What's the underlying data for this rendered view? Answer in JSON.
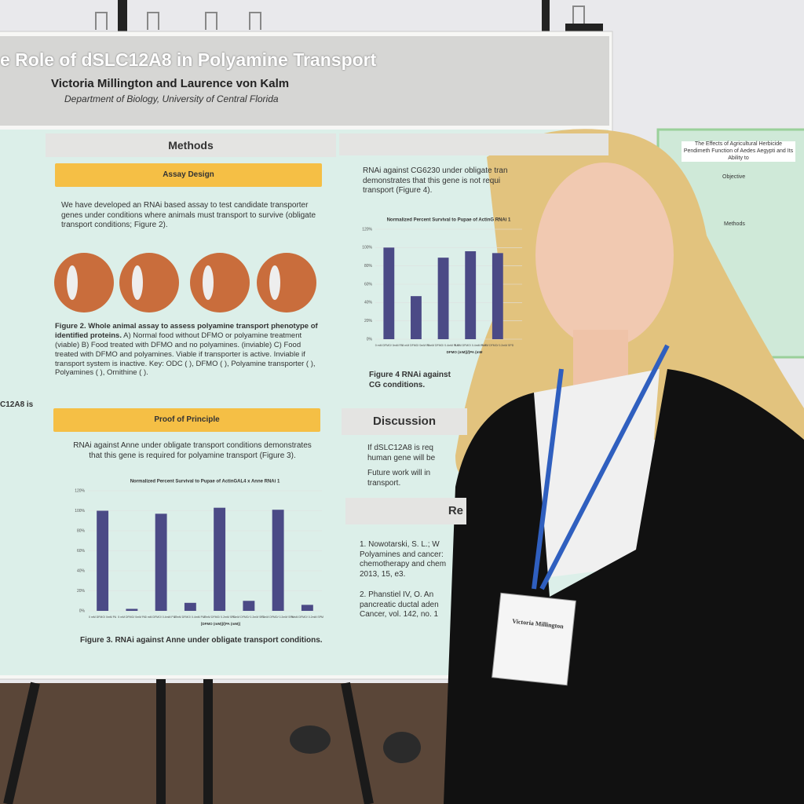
{
  "poster": {
    "title": "e Role of dSLC12A8 in Polyamine Transport",
    "authors": "Victoria Millington and Laurence von Kalm",
    "department": "Department of Biology, University of Central Florida",
    "left_fragment": "C12A8 is",
    "methods_heading": "Methods",
    "assay_heading": "Assay Design",
    "assay_text": "We have developed an RNAi based assay to test candidate transporter genes under conditions where animals must transport to survive (obligate transport conditions; Figure 2).",
    "figure2_caption_bold": "Figure 2. Whole animal assay to assess polyamine transport phenotype of identified proteins.",
    "figure2_caption_text": "A) Normal food without DFMO or polyamine treatment (viable) B) Food treated with DFMO and no polyamines. (inviable) C) Food treated with DFMO and polyamines. Viable if transporter is active. Inviable if transport system is inactive. Key: ODC ( ), DFMO ( ), Polyamine transporter ( ), Polyamines ( ), Ornithine ( ).",
    "principle_heading": "Proof of Principle",
    "principle_text": "RNAi against Anne under obligate transport conditions demonstrates that this gene is required for polyamine transport (Figure 3).",
    "figure3_caption": "Figure 3. RNAi against Anne under obligate transport conditions.",
    "right_text": "RNAi against CG6230 under obligate tran demonstrates that this gene is not requi transport (Figure 4).",
    "figure4_caption": "Figure 4 RNAi against CG conditions.",
    "discussion_heading": "Discussion",
    "discussion_bullets": [
      "If dSLC12A8 is req human gene will be",
      "Future work will in transport."
    ],
    "references_heading": "Re",
    "references": [
      "1. Nowotarski, S. L.; W Polyamines and cancer: chemotherapy and chem 2013, 15, e3.",
      "2. Phanstiel IV, O. An pancreatic ductal aden Cancer, vol. 142, no. 1"
    ]
  },
  "chart_data": [
    {
      "type": "bar",
      "title": "Normalized Percent Survival to Pupae of ActinGAL4 x Anne RNAi 1",
      "categories": [
        "0 mM DFMO/ 0mM PA",
        "5 mM DFMO/ 0mM PA",
        "0 mM DFMO/ 0.4mM PUT",
        "5 mM DFMO/ 0.4mM PUT",
        "0 mM DFMO/ 0.2mM SPD",
        "5 mM DFMO/ 0.2mM SPD",
        "0 mM DFMO/ 0.2mM SPM",
        "5 mM DFMO/ 0.2mM SPM"
      ],
      "values": [
        100,
        2,
        97,
        8,
        103,
        10,
        101,
        6
      ],
      "color": "#4b4a86",
      "x_label": "[DFMO (mM)]/[PA (mM)]",
      "ylim": [
        0,
        120
      ],
      "yticks": [
        {
          "value": 0,
          "label": "0%"
        },
        {
          "value": 20,
          "label": "20%"
        },
        {
          "value": 40,
          "label": "40%"
        },
        {
          "value": 60,
          "label": "60%"
        },
        {
          "value": 80,
          "label": "80%"
        },
        {
          "value": 100,
          "label": "100%"
        },
        {
          "value": 120,
          "label": "120%"
        }
      ],
      "grid": true
    },
    {
      "type": "bar",
      "title": "Normalized Percent Survival to Pupae of ActinG RNAi 1",
      "categories": [
        "0 mM DFMO/ 0mM PA",
        "5 mM DFMO/ 0mM PA",
        "0 mM DFMO/ 0.4mM PUT",
        "5 mM DFMO/ 0.4mM PUT",
        "5 mM DFMO/ 0.2mM SPD"
      ],
      "values": [
        100,
        47,
        89,
        96,
        94
      ],
      "color": "#4b4a86",
      "x_label": "DFMO (mM)]/[PA (mM",
      "ylim": [
        0,
        120
      ],
      "yticks": [
        {
          "value": 0,
          "label": "0%"
        },
        {
          "value": 20,
          "label": "20%"
        },
        {
          "value": 40,
          "label": "40%"
        },
        {
          "value": 60,
          "label": "60%"
        },
        {
          "value": 80,
          "label": "80%"
        },
        {
          "value": 100,
          "label": "100%"
        },
        {
          "value": 120,
          "label": "120%"
        }
      ],
      "grid": true
    }
  ],
  "badge": {
    "name": "Victoria Millington"
  },
  "neighbor_poster": {
    "title": "The Effects of Agricultural Herbicide Pendimeth Function of Aedes Aegypti and Its Ability to",
    "objective": "Objective",
    "methods": "Methods"
  }
}
